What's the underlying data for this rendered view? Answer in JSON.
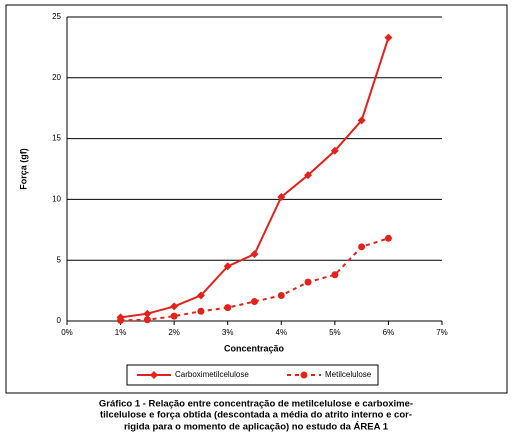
{
  "chart_data": {
    "type": "line",
    "x_label": "Concentração",
    "y_label": "Força (gf)",
    "x": [
      1,
      1.5,
      2,
      2.5,
      3,
      3.5,
      4,
      4.5,
      5,
      5.5,
      6
    ],
    "series": [
      {
        "name": "Carboximetilcelulose",
        "color": "#e3221c",
        "marker": "diamond",
        "dash": false,
        "values": [
          0.3,
          0.6,
          1.2,
          2.1,
          4.5,
          5.5,
          10.2,
          12,
          14,
          16.5,
          23.3
        ]
      },
      {
        "name": "Metilcelulose",
        "color": "#e3221c",
        "marker": "circle",
        "dash": true,
        "values": [
          0.05,
          0.1,
          0.4,
          0.8,
          1.1,
          1.6,
          2.1,
          3.2,
          3.8,
          6.1,
          6.8
        ]
      }
    ],
    "xlim": [
      0,
      7
    ],
    "xticks": [
      {
        "value": 0,
        "label": "0%"
      },
      {
        "value": 1,
        "label": "1%"
      },
      {
        "value": 2,
        "label": "2%"
      },
      {
        "value": 3,
        "label": "3%"
      },
      {
        "value": 4,
        "label": "4%"
      },
      {
        "value": 5,
        "label": "5%"
      },
      {
        "value": 6,
        "label": "6%"
      },
      {
        "value": 7,
        "label": "7%"
      }
    ],
    "ylim": [
      0,
      25
    ],
    "yticks": [
      0,
      5,
      10,
      15,
      20,
      25
    ],
    "grid": true,
    "legend": "bottom",
    "caption": [
      "Gráfico 1 - Relação entre concentração de metilcelulose e carboxime-",
      "tilcelulose e força obtida (descontada a média do atrito interno e cor-",
      "rigida para o momento de aplicação) no estudo da  ÁREA 1"
    ]
  }
}
